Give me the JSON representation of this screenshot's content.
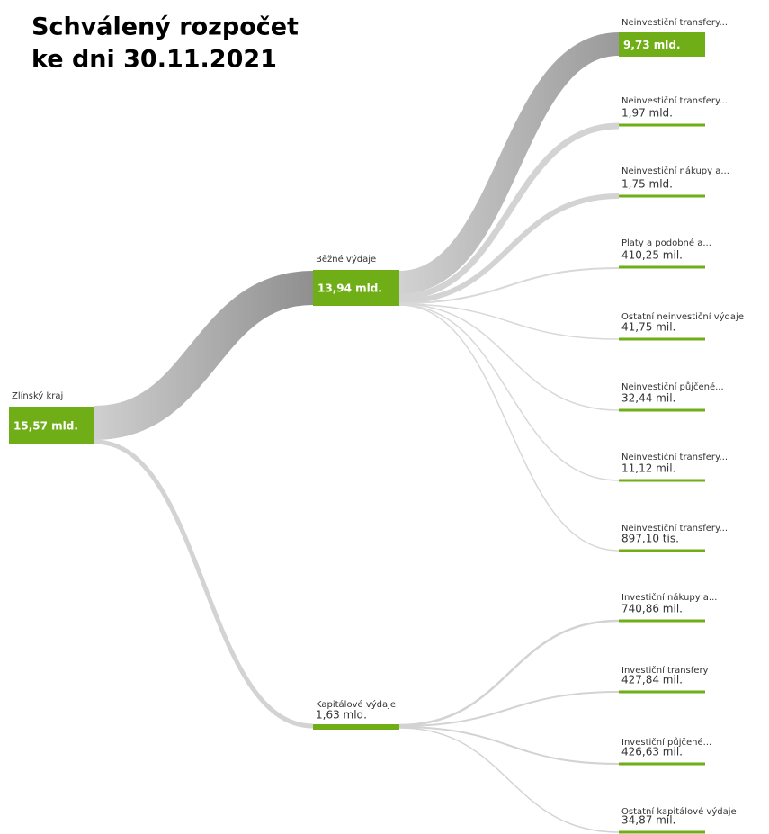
{
  "title": [
    "Schválený rozpočet",
    "ke dni 30.11.2021"
  ],
  "nodes": [
    {
      "label": "Zlínský kraj",
      "value": "15,57 mld."
    },
    {
      "label": "Běžné výdaje",
      "value": "13,94 mld."
    },
    {
      "label": "Kapitálové výdaje",
      "value": "1,63 mld."
    },
    {
      "label": "Neinvestiční transfery...",
      "value": "9,73 mld."
    },
    {
      "label": "Neinvestiční transfery...",
      "value": "1,97 mld."
    },
    {
      "label": "Neinvestiční nákupy a...",
      "value": "1,75 mld."
    },
    {
      "label": "Platy a podobné a...",
      "value": "410,25 mil."
    },
    {
      "label": "Ostatní neinvestiční výdaje",
      "value": "41,75 mil."
    },
    {
      "label": "Neinvestiční půjčené...",
      "value": "32,44 mil."
    },
    {
      "label": "Neinvestiční transfery...",
      "value": "11,12 mil."
    },
    {
      "label": "Neinvestiční transfery...",
      "value": "897,10 tis."
    },
    {
      "label": "Investiční nákupy a...",
      "value": "740,86 mil."
    },
    {
      "label": "Investiční transfery",
      "value": "427,84 mil."
    },
    {
      "label": "Investiční půjčené...",
      "value": "426,63 mil."
    },
    {
      "label": "Ostatní kapitálové výdaje",
      "value": "34,87 mil."
    }
  ]
}
